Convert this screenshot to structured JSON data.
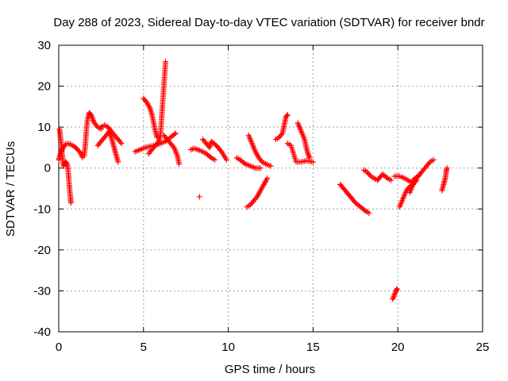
{
  "chart_data": {
    "type": "scatter",
    "title": "Day 288 of 2023, Sidereal Day-to-day VTEC variation (SDTVAR) for receiver bndr",
    "xlabel": "GPS time / hours",
    "ylabel": "SDTVAR / TECUs",
    "xlim": [
      0,
      25
    ],
    "ylim": [
      -40,
      30
    ],
    "xticks": [
      0,
      5,
      10,
      15,
      20,
      25
    ],
    "yticks": [
      -40,
      -30,
      -20,
      -10,
      0,
      10,
      20,
      30
    ],
    "grid": true,
    "legend": "none",
    "marker": "plus",
    "color": "#ff0000",
    "series": [
      {
        "segments": [
          [
            [
              0.0,
              2.0
            ],
            [
              0.1,
              3.5
            ],
            [
              0.2,
              4.5
            ],
            [
              0.3,
              5.2
            ],
            [
              0.4,
              5.8
            ],
            [
              0.5,
              6.0
            ],
            [
              0.7,
              5.8
            ],
            [
              0.9,
              5.3
            ],
            [
              1.1,
              4.6
            ],
            [
              1.3,
              3.6
            ],
            [
              1.4,
              2.6
            ]
          ],
          [
            [
              0.05,
              9.5
            ],
            [
              0.1,
              7.5
            ],
            [
              0.15,
              5.5
            ],
            [
              0.2,
              3.5
            ],
            [
              0.25,
              1.5
            ],
            [
              0.3,
              0.5
            ]
          ],
          [
            [
              0.3,
              0.8
            ],
            [
              0.4,
              1.5
            ],
            [
              0.5,
              1.0
            ],
            [
              0.55,
              -0.5
            ],
            [
              0.6,
              -3.0
            ],
            [
              0.65,
              -5.5
            ],
            [
              0.7,
              -7.5
            ],
            [
              0.72,
              -8.5
            ]
          ],
          [
            [
              1.5,
              3.0
            ],
            [
              1.55,
              5.0
            ],
            [
              1.6,
              7.5
            ],
            [
              1.65,
              10.0
            ],
            [
              1.7,
              12.0
            ],
            [
              1.8,
              13.5
            ],
            [
              1.9,
              13.0
            ],
            [
              2.0,
              12.0
            ],
            [
              2.1,
              11.0
            ],
            [
              2.3,
              10.0
            ],
            [
              2.5,
              9.5
            ]
          ],
          [
            [
              2.3,
              5.5
            ],
            [
              2.5,
              6.5
            ],
            [
              2.7,
              7.5
            ],
            [
              2.9,
              8.5
            ],
            [
              3.0,
              9.0
            ]
          ],
          [
            [
              2.5,
              10.0
            ],
            [
              2.7,
              10.5
            ],
            [
              2.9,
              10.0
            ],
            [
              3.1,
              9.0
            ],
            [
              3.3,
              8.0
            ],
            [
              3.5,
              7.0
            ],
            [
              3.7,
              6.0
            ]
          ],
          [
            [
              3.0,
              9.0
            ],
            [
              3.1,
              7.5
            ],
            [
              3.2,
              6.0
            ],
            [
              3.3,
              4.5
            ],
            [
              3.4,
              3.0
            ],
            [
              3.5,
              1.5
            ]
          ],
          [
            [
              4.5,
              4.0
            ],
            [
              4.8,
              4.5
            ],
            [
              5.1,
              5.0
            ],
            [
              5.4,
              5.3
            ],
            [
              5.7,
              5.6
            ],
            [
              6.0,
              6.0
            ],
            [
              6.3,
              6.5
            ],
            [
              6.6,
              7.5
            ],
            [
              6.9,
              8.5
            ]
          ],
          [
            [
              5.0,
              17.0
            ],
            [
              5.2,
              16.0
            ],
            [
              5.4,
              14.5
            ],
            [
              5.5,
              13.0
            ],
            [
              5.6,
              11.0
            ],
            [
              5.7,
              9.0
            ],
            [
              5.8,
              7.5
            ]
          ],
          [
            [
              5.3,
              3.5
            ],
            [
              5.5,
              4.5
            ],
            [
              5.7,
              5.5
            ],
            [
              5.9,
              6.5
            ],
            [
              6.0,
              8.0
            ],
            [
              6.05,
              11.0
            ],
            [
              6.1,
              14.0
            ],
            [
              6.15,
              17.0
            ],
            [
              6.2,
              20.0
            ],
            [
              6.25,
              23.0
            ],
            [
              6.3,
              26.0
            ]
          ],
          [
            [
              6.2,
              8.0
            ],
            [
              6.4,
              7.0
            ],
            [
              6.6,
              6.0
            ],
            [
              6.8,
              5.0
            ],
            [
              7.0,
              3.0
            ],
            [
              7.1,
              1.0
            ]
          ],
          [
            [
              7.8,
              4.5
            ],
            [
              8.0,
              4.8
            ],
            [
              8.2,
              4.5
            ],
            [
              8.5,
              4.0
            ],
            [
              8.7,
              3.5
            ],
            [
              9.0,
              2.5
            ],
            [
              9.2,
              2.0
            ]
          ],
          [
            [
              8.3,
              -7.0
            ]
          ],
          [
            [
              8.5,
              7.0
            ],
            [
              8.7,
              6.0
            ],
            [
              8.9,
              5.0
            ],
            [
              9.0,
              6.5
            ],
            [
              9.3,
              5.5
            ],
            [
              9.6,
              4.0
            ],
            [
              9.9,
              2.0
            ]
          ],
          [
            [
              10.5,
              2.5
            ],
            [
              10.7,
              2.0
            ],
            [
              11.0,
              1.0
            ],
            [
              11.3,
              0.5
            ],
            [
              11.6,
              0.0
            ],
            [
              11.9,
              0.0
            ]
          ],
          [
            [
              11.2,
              8.0
            ],
            [
              11.4,
              6.0
            ],
            [
              11.6,
              4.0
            ],
            [
              11.8,
              2.5
            ],
            [
              12.0,
              1.5
            ],
            [
              12.2,
              1.0
            ],
            [
              12.5,
              0.5
            ]
          ],
          [
            [
              11.1,
              -9.5
            ],
            [
              11.3,
              -9.0
            ],
            [
              11.5,
              -8.0
            ],
            [
              11.7,
              -7.0
            ],
            [
              11.9,
              -5.5
            ],
            [
              12.1,
              -4.0
            ],
            [
              12.3,
              -2.5
            ]
          ],
          [
            [
              12.8,
              7.0
            ],
            [
              13.0,
              7.5
            ],
            [
              13.2,
              8.5
            ],
            [
              13.3,
              10.5
            ],
            [
              13.4,
              12.5
            ],
            [
              13.5,
              13.0
            ]
          ],
          [
            [
              13.5,
              6.0
            ],
            [
              13.7,
              5.5
            ],
            [
              14.0,
              1.5
            ],
            [
              14.3,
              1.5
            ],
            [
              14.6,
              1.8
            ],
            [
              15.0,
              1.5
            ]
          ],
          [
            [
              14.1,
              11.0
            ],
            [
              14.3,
              9.0
            ],
            [
              14.5,
              7.0
            ],
            [
              14.6,
              5.0
            ],
            [
              14.7,
              3.5
            ],
            [
              14.8,
              2.5
            ]
          ],
          [
            [
              16.6,
              -4.0
            ],
            [
              16.9,
              -5.5
            ],
            [
              17.2,
              -7.0
            ],
            [
              17.5,
              -8.5
            ],
            [
              17.8,
              -9.5
            ],
            [
              18.1,
              -10.5
            ],
            [
              18.3,
              -11.0
            ]
          ],
          [
            [
              18.0,
              -0.5
            ],
            [
              18.2,
              -1.0
            ],
            [
              18.4,
              -2.0
            ],
            [
              18.6,
              -2.5
            ],
            [
              18.8,
              -3.0
            ],
            [
              19.1,
              -1.5
            ],
            [
              19.4,
              -2.5
            ],
            [
              19.6,
              -3.0
            ]
          ],
          [
            [
              19.7,
              -32.0
            ],
            [
              19.8,
              -31.0
            ],
            [
              19.9,
              -30.0
            ],
            [
              19.95,
              -29.5
            ]
          ],
          [
            [
              19.8,
              -2.0
            ],
            [
              20.1,
              -2.0
            ],
            [
              20.4,
              -2.5
            ],
            [
              20.6,
              -3.0
            ],
            [
              20.8,
              -3.5
            ],
            [
              21.0,
              -2.5
            ],
            [
              21.2,
              -2.0
            ],
            [
              21.3,
              -1.5
            ]
          ],
          [
            [
              20.1,
              -9.5
            ],
            [
              20.3,
              -7.5
            ],
            [
              20.5,
              -5.5
            ],
            [
              20.7,
              -4.5
            ],
            [
              20.9,
              -4.0
            ],
            [
              21.1,
              -3.0
            ]
          ],
          [
            [
              20.7,
              -6.0
            ],
            [
              20.9,
              -4.0
            ],
            [
              21.1,
              -2.5
            ],
            [
              21.3,
              -1.5
            ],
            [
              21.5,
              -0.5
            ],
            [
              21.7,
              0.5
            ],
            [
              21.9,
              1.5
            ],
            [
              22.1,
              2.0
            ]
          ],
          [
            [
              22.6,
              -5.5
            ],
            [
              22.7,
              -4.0
            ],
            [
              22.8,
              -2.5
            ],
            [
              22.85,
              -1.0
            ],
            [
              22.9,
              0.0
            ]
          ]
        ]
      }
    ]
  }
}
